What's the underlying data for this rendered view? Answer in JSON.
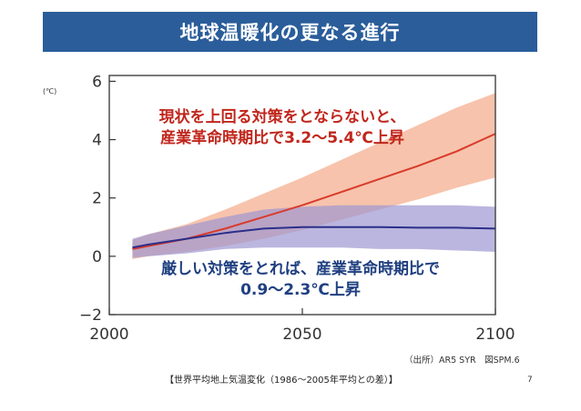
{
  "slide": {
    "title": "地球温暖化の更なる進行",
    "source": "（出所）AR5 SYR　図SPM.6",
    "caption": "【世界平均地上気温変化（1986～2005年平均との差）】",
    "page_number": "7"
  },
  "chart_data": {
    "type": "line",
    "unit_label": "(℃)",
    "xlim": [
      2000,
      2100
    ],
    "ylim": [
      -2,
      6.2
    ],
    "xticks": [
      2000,
      2050,
      2100
    ],
    "yticks": [
      -2,
      0,
      2,
      4,
      6
    ],
    "grid": false,
    "series": [
      {
        "color": "#d93b2b",
        "band_color": "#f4a989",
        "x": [
          2006,
          2010,
          2020,
          2030,
          2040,
          2050,
          2060,
          2070,
          2080,
          2090,
          2100
        ],
        "y": [
          0.25,
          0.35,
          0.6,
          0.95,
          1.35,
          1.75,
          2.2,
          2.65,
          3.1,
          3.6,
          4.2
        ],
        "lower": [
          -0.1,
          0.0,
          0.15,
          0.35,
          0.6,
          0.9,
          1.25,
          1.6,
          1.95,
          2.35,
          2.7
        ],
        "upper": [
          0.55,
          0.75,
          1.1,
          1.6,
          2.15,
          2.7,
          3.3,
          3.9,
          4.5,
          5.1,
          5.6
        ]
      },
      {
        "color": "#2b2f8a",
        "band_color": "#9e97d2",
        "x": [
          2006,
          2010,
          2020,
          2030,
          2040,
          2050,
          2060,
          2070,
          2080,
          2090,
          2100
        ],
        "y": [
          0.3,
          0.4,
          0.6,
          0.8,
          0.95,
          1.0,
          1.0,
          1.0,
          0.98,
          0.98,
          0.95
        ],
        "lower": [
          -0.05,
          0.0,
          0.1,
          0.25,
          0.3,
          0.3,
          0.3,
          0.25,
          0.25,
          0.2,
          0.15
        ],
        "upper": [
          0.6,
          0.75,
          1.05,
          1.35,
          1.6,
          1.7,
          1.75,
          1.75,
          1.75,
          1.75,
          1.7
        ]
      }
    ],
    "annotations": {
      "red_line1": "現状を上回る対策をとならないと、",
      "red_line2": "産業革命時期比で3.2～5.4℃上昇",
      "blue_line1": "厳しい対策をとれば、産業革命時期比で",
      "blue_line2": "0.9～2.3℃上昇"
    }
  }
}
